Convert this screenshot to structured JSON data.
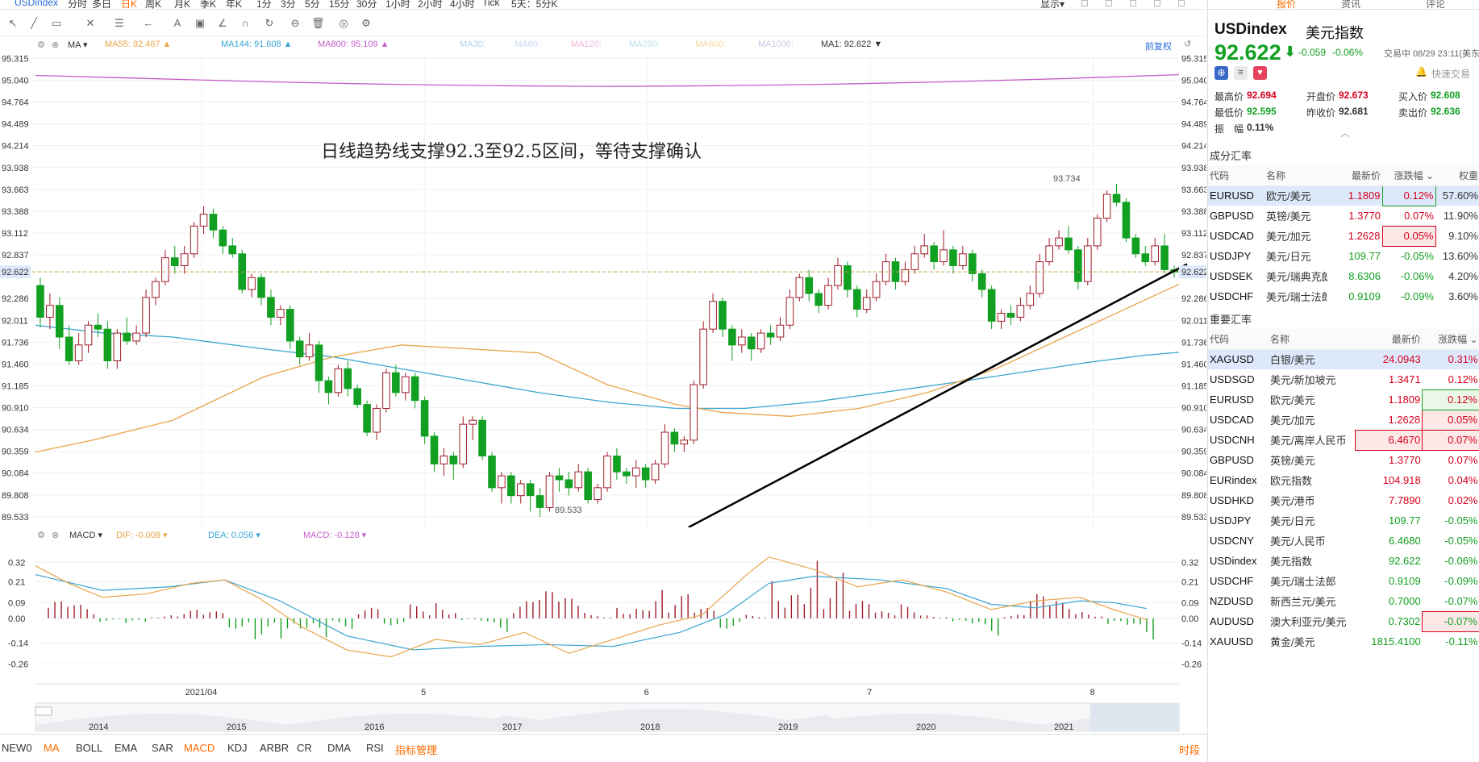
{
  "topbar": {
    "symbol": "USDindex",
    "periods": [
      "分时",
      "多日",
      "日K",
      "周K",
      "月K",
      "季K",
      "年K",
      "1分",
      "3分",
      "5分",
      "15分",
      "30分",
      "1小时",
      "2小时",
      "4小时",
      "Tick",
      "5天：5分K"
    ],
    "active_period": "日K",
    "display": "显示"
  },
  "legend": {
    "indicator": "MA",
    "items": [
      {
        "text": "MA55: 92.467",
        "color": "#e8a44a"
      },
      {
        "text": "MA144: 91.608",
        "color": "#3aa5d1"
      },
      {
        "text": "MA800: 95.109",
        "color": "#c45ec7"
      },
      {
        "text": "MA30:",
        "color": "#a9d2ee"
      },
      {
        "text": "MA60:",
        "color": "#c6d8f5"
      },
      {
        "text": "MA120:",
        "color": "#f2b8d8"
      },
      {
        "text": "MA250:",
        "color": "#b7e3ec"
      },
      {
        "text": "MA600:",
        "color": "#f4d79e"
      },
      {
        "text": "MA1000:",
        "color": "#c8c8e6"
      },
      {
        "text": "MA1: 92.622",
        "color": "#333333"
      }
    ],
    "adjust": "前复权"
  },
  "annotation": "日线趋势线支撑92.3至92.5区间，等待支撑确认",
  "chart_data": {
    "type": "candlestick",
    "yticks": [
      "95.315",
      "95.040",
      "94.764",
      "94.489",
      "94.214",
      "93.938",
      "93.663",
      "93.388",
      "93.112",
      "92.837",
      "92.622",
      "92.286",
      "92.011",
      "91.736",
      "91.460",
      "91.185",
      "90.910",
      "90.634",
      "90.359",
      "90.084",
      "89.808",
      "89.533"
    ],
    "ylim": [
      89.4,
      95.4
    ],
    "xticks": [
      "2021/04",
      "5",
      "6",
      "7",
      "8"
    ],
    "high_label": "93.734",
    "low_label": "89.533",
    "last_price": "92.622",
    "candles": [
      [
        92.45,
        92.05,
        92.55,
        91.92
      ],
      [
        92.05,
        92.2,
        92.35,
        91.9
      ],
      [
        92.2,
        91.8,
        92.3,
        91.65
      ],
      [
        91.8,
        91.5,
        91.95,
        91.45
      ],
      [
        91.5,
        91.7,
        91.85,
        91.45
      ],
      [
        91.7,
        91.95,
        92.0,
        91.6
      ],
      [
        91.95,
        91.9,
        92.1,
        91.8
      ],
      [
        91.9,
        91.5,
        92.0,
        91.4
      ],
      [
        91.5,
        91.85,
        91.9,
        91.4
      ],
      [
        91.85,
        91.75,
        92.05,
        91.7
      ],
      [
        91.75,
        91.85,
        91.95,
        91.7
      ],
      [
        91.85,
        92.3,
        92.4,
        91.8
      ],
      [
        92.3,
        92.5,
        92.55,
        92.2
      ],
      [
        92.5,
        92.8,
        92.9,
        92.45
      ],
      [
        92.8,
        92.7,
        92.95,
        92.6
      ],
      [
        92.7,
        92.85,
        92.95,
        92.6
      ],
      [
        92.85,
        93.2,
        93.25,
        92.8
      ],
      [
        93.2,
        93.35,
        93.45,
        93.1
      ],
      [
        93.35,
        93.15,
        93.42,
        93.05
      ],
      [
        93.15,
        92.95,
        93.2,
        92.85
      ],
      [
        92.95,
        92.85,
        93.05,
        92.8
      ],
      [
        92.85,
        92.4,
        92.9,
        92.35
      ],
      [
        92.4,
        92.55,
        92.6,
        92.3
      ],
      [
        92.55,
        92.3,
        92.6,
        92.2
      ],
      [
        92.3,
        92.05,
        92.4,
        91.95
      ],
      [
        92.05,
        92.15,
        92.2,
        91.95
      ],
      [
        92.15,
        91.75,
        92.2,
        91.65
      ],
      [
        91.75,
        91.55,
        91.8,
        91.45
      ],
      [
        91.55,
        91.7,
        91.85,
        91.5
      ],
      [
        91.7,
        91.25,
        91.75,
        91.1
      ],
      [
        91.25,
        91.1,
        91.3,
        90.95
      ],
      [
        91.1,
        91.4,
        91.45,
        91.05
      ],
      [
        91.4,
        91.15,
        91.5,
        91.05
      ],
      [
        91.15,
        90.95,
        91.2,
        90.9
      ],
      [
        90.95,
        90.6,
        91.0,
        90.55
      ],
      [
        90.6,
        90.9,
        90.95,
        90.5
      ],
      [
        90.9,
        91.35,
        91.4,
        90.85
      ],
      [
        91.35,
        91.1,
        91.45,
        91.05
      ],
      [
        91.1,
        91.3,
        91.35,
        91.0
      ],
      [
        91.3,
        91.0,
        91.35,
        90.9
      ],
      [
        91.0,
        90.55,
        91.05,
        90.45
      ],
      [
        90.55,
        90.2,
        90.6,
        90.1
      ],
      [
        90.2,
        90.3,
        90.4,
        90.05
      ],
      [
        90.3,
        90.2,
        90.35,
        90.0
      ],
      [
        90.2,
        90.7,
        90.8,
        90.15
      ],
      [
        90.7,
        90.75,
        90.8,
        90.5
      ],
      [
        90.75,
        90.3,
        90.8,
        90.25
      ],
      [
        90.3,
        89.9,
        90.35,
        89.85
      ],
      [
        89.9,
        90.05,
        90.1,
        89.7
      ],
      [
        90.05,
        89.8,
        90.1,
        89.7
      ],
      [
        89.8,
        89.95,
        90.0,
        89.7
      ],
      [
        89.95,
        89.8,
        90.0,
        89.6
      ],
      [
        89.8,
        89.65,
        89.9,
        89.53
      ],
      [
        89.65,
        90.05,
        90.1,
        89.6
      ],
      [
        90.05,
        90.0,
        90.15,
        89.85
      ],
      [
        90.0,
        89.9,
        90.1,
        89.8
      ],
      [
        89.9,
        90.1,
        90.2,
        89.85
      ],
      [
        90.1,
        89.75,
        90.15,
        89.7
      ],
      [
        89.75,
        89.9,
        89.95,
        89.7
      ],
      [
        89.9,
        90.3,
        90.35,
        89.85
      ],
      [
        90.3,
        90.1,
        90.4,
        90.0
      ],
      [
        90.1,
        90.05,
        90.15,
        89.95
      ],
      [
        90.05,
        90.15,
        90.25,
        89.9
      ],
      [
        90.15,
        90.0,
        90.2,
        89.9
      ],
      [
        90.0,
        90.2,
        90.25,
        89.95
      ],
      [
        90.2,
        90.6,
        90.7,
        90.15
      ],
      [
        90.6,
        90.45,
        90.65,
        90.35
      ],
      [
        90.45,
        90.5,
        90.55,
        90.35
      ],
      [
        90.5,
        91.2,
        91.25,
        90.45
      ],
      [
        91.2,
        91.9,
        92.0,
        91.15
      ],
      [
        91.9,
        92.25,
        92.35,
        91.85
      ],
      [
        92.25,
        91.9,
        92.3,
        91.8
      ],
      [
        91.9,
        91.7,
        91.95,
        91.5
      ],
      [
        91.7,
        91.8,
        91.9,
        91.6
      ],
      [
        91.8,
        91.65,
        91.85,
        91.5
      ],
      [
        91.65,
        91.85,
        91.9,
        91.6
      ],
      [
        91.85,
        91.8,
        91.95,
        91.7
      ],
      [
        91.8,
        91.95,
        92.05,
        91.75
      ],
      [
        91.95,
        92.3,
        92.4,
        91.9
      ],
      [
        92.3,
        92.55,
        92.6,
        92.25
      ],
      [
        92.55,
        92.35,
        92.65,
        92.25
      ],
      [
        92.35,
        92.2,
        92.4,
        92.1
      ],
      [
        92.2,
        92.45,
        92.55,
        92.15
      ],
      [
        92.45,
        92.7,
        92.8,
        92.4
      ],
      [
        92.7,
        92.4,
        92.75,
        92.3
      ],
      [
        92.4,
        92.15,
        92.45,
        92.05
      ],
      [
        92.15,
        92.3,
        92.4,
        92.1
      ],
      [
        92.3,
        92.5,
        92.6,
        92.25
      ],
      [
        92.5,
        92.75,
        92.85,
        92.45
      ],
      [
        92.75,
        92.5,
        92.8,
        92.4
      ],
      [
        92.5,
        92.65,
        92.75,
        92.45
      ],
      [
        92.65,
        92.85,
        92.95,
        92.6
      ],
      [
        92.85,
        92.95,
        93.1,
        92.8
      ],
      [
        92.95,
        92.75,
        93.0,
        92.65
      ],
      [
        92.75,
        92.9,
        93.15,
        92.7
      ],
      [
        92.9,
        92.7,
        92.95,
        92.6
      ],
      [
        92.7,
        92.85,
        92.95,
        92.65
      ],
      [
        92.85,
        92.6,
        92.9,
        92.5
      ],
      [
        92.6,
        92.4,
        92.65,
        92.3
      ],
      [
        92.4,
        92.0,
        92.45,
        91.9
      ],
      [
        92.0,
        92.1,
        92.15,
        91.9
      ],
      [
        92.1,
        92.05,
        92.2,
        91.95
      ],
      [
        92.05,
        92.2,
        92.3,
        92.0
      ],
      [
        92.2,
        92.35,
        92.45,
        92.15
      ],
      [
        92.35,
        92.75,
        92.85,
        92.3
      ],
      [
        92.75,
        92.95,
        93.05,
        92.7
      ],
      [
        92.95,
        93.05,
        93.15,
        92.9
      ],
      [
        93.05,
        92.9,
        93.2,
        92.85
      ],
      [
        92.9,
        92.5,
        92.95,
        92.4
      ],
      [
        92.5,
        92.95,
        93.05,
        92.45
      ],
      [
        92.95,
        93.3,
        93.35,
        92.9
      ],
      [
        93.3,
        93.6,
        93.65,
        93.25
      ],
      [
        93.6,
        93.5,
        93.734,
        93.45
      ],
      [
        93.5,
        93.05,
        93.55,
        93.0
      ],
      [
        93.05,
        92.85,
        93.1,
        92.8
      ],
      [
        92.85,
        92.75,
        92.95,
        92.7
      ],
      [
        92.75,
        92.95,
        93.05,
        92.7
      ],
      [
        92.95,
        92.65,
        93.1,
        92.6
      ],
      [
        92.65,
        92.62,
        92.7,
        92.55
      ]
    ],
    "ma55": [
      [
        0,
        90.35
      ],
      [
        0.05,
        90.5
      ],
      [
        0.12,
        90.75
      ],
      [
        0.2,
        91.3
      ],
      [
        0.26,
        91.55
      ],
      [
        0.32,
        91.7
      ],
      [
        0.38,
        91.65
      ],
      [
        0.44,
        91.6
      ],
      [
        0.5,
        91.2
      ],
      [
        0.56,
        90.95
      ],
      [
        0.6,
        90.85
      ],
      [
        0.66,
        90.8
      ],
      [
        0.72,
        90.9
      ],
      [
        0.78,
        91.1
      ],
      [
        0.84,
        91.4
      ],
      [
        0.9,
        91.8
      ],
      [
        0.96,
        92.2
      ],
      [
        1.0,
        92.467
      ]
    ],
    "ma144": [
      [
        0,
        91.95
      ],
      [
        0.06,
        91.85
      ],
      [
        0.12,
        91.8
      ],
      [
        0.2,
        91.65
      ],
      [
        0.26,
        91.55
      ],
      [
        0.32,
        91.4
      ],
      [
        0.38,
        91.25
      ],
      [
        0.44,
        91.1
      ],
      [
        0.5,
        90.98
      ],
      [
        0.56,
        90.9
      ],
      [
        0.62,
        90.9
      ],
      [
        0.68,
        90.98
      ],
      [
        0.74,
        91.1
      ],
      [
        0.8,
        91.22
      ],
      [
        0.86,
        91.35
      ],
      [
        0.92,
        91.48
      ],
      [
        0.97,
        91.57
      ],
      [
        1.0,
        91.608
      ]
    ],
    "ma800": [
      [
        0,
        95.1
      ],
      [
        0.1,
        95.06
      ],
      [
        0.2,
        95.02
      ],
      [
        0.3,
        94.99
      ],
      [
        0.4,
        94.97
      ],
      [
        0.5,
        94.96
      ],
      [
        0.6,
        94.97
      ],
      [
        0.7,
        94.99
      ],
      [
        0.8,
        95.02
      ],
      [
        0.9,
        95.06
      ],
      [
        1.0,
        95.109
      ]
    ],
    "trendline": [
      [
        0.43,
        89.4
      ],
      [
        1.0,
        92.72
      ]
    ],
    "macd_legend": [
      {
        "text": "DIF: -0.008",
        "color": "#e8a44a"
      },
      {
        "text": "DEA: 0.056",
        "color": "#3aa5d1"
      },
      {
        "text": "MACD: -0.128",
        "color": "#c45ec7"
      }
    ],
    "macd_yticks": [
      "0.32",
      "0.21",
      "0.09",
      "0.00",
      "-0.14",
      "-0.26"
    ],
    "macd_ylim": [
      -0.3,
      0.4
    ],
    "macd_dif": [
      [
        0,
        0.3
      ],
      [
        0.03,
        0.2
      ],
      [
        0.06,
        0.12
      ],
      [
        0.1,
        0.14
      ],
      [
        0.14,
        0.2
      ],
      [
        0.17,
        0.22
      ],
      [
        0.2,
        0.12
      ],
      [
        0.24,
        -0.05
      ],
      [
        0.28,
        -0.18
      ],
      [
        0.32,
        -0.22
      ],
      [
        0.36,
        -0.12
      ],
      [
        0.4,
        -0.15
      ],
      [
        0.44,
        -0.08
      ],
      [
        0.48,
        -0.2
      ],
      [
        0.52,
        -0.12
      ],
      [
        0.56,
        -0.04
      ],
      [
        0.6,
        0.02
      ],
      [
        0.64,
        0.25
      ],
      [
        0.66,
        0.35
      ],
      [
        0.7,
        0.28
      ],
      [
        0.74,
        0.18
      ],
      [
        0.78,
        0.22
      ],
      [
        0.82,
        0.15
      ],
      [
        0.86,
        0.05
      ],
      [
        0.9,
        0.1
      ],
      [
        0.94,
        0.12
      ],
      [
        0.97,
        0.05
      ],
      [
        1.0,
        -0.008
      ]
    ],
    "macd_dea": [
      [
        0,
        0.25
      ],
      [
        0.06,
        0.16
      ],
      [
        0.12,
        0.18
      ],
      [
        0.17,
        0.22
      ],
      [
        0.22,
        0.1
      ],
      [
        0.28,
        -0.1
      ],
      [
        0.34,
        -0.18
      ],
      [
        0.4,
        -0.16
      ],
      [
        0.46,
        -0.15
      ],
      [
        0.52,
        -0.16
      ],
      [
        0.58,
        -0.08
      ],
      [
        0.62,
        0.02
      ],
      [
        0.66,
        0.2
      ],
      [
        0.7,
        0.24
      ],
      [
        0.76,
        0.22
      ],
      [
        0.82,
        0.17
      ],
      [
        0.86,
        0.08
      ],
      [
        0.9,
        0.06
      ],
      [
        0.94,
        0.1
      ],
      [
        0.97,
        0.09
      ],
      [
        1.0,
        0.056
      ]
    ],
    "macd_hist": [
      0.1,
      0.08,
      -0.02,
      -0.04,
      0.02,
      0.05,
      0.04,
      -0.06,
      -0.12,
      -0.15,
      -0.14,
      -0.06,
      0.06,
      -0.04,
      0.08,
      0.1,
      -0.02,
      -0.08,
      0.1,
      0.16,
      0.12,
      0.02,
      0.1,
      0.18,
      0.14,
      0.06,
      -0.06,
      0.02,
      0.3,
      0.4,
      0.26,
      0.1,
      0.04,
      0.08,
      0.02,
      -0.04,
      -0.1,
      0.02,
      0.14,
      0.1,
      0.04,
      -0.06,
      -0.128
    ],
    "xaxis_years": [
      "2014",
      "2015",
      "2016",
      "2017",
      "2018",
      "2019",
      "2020",
      "2021"
    ]
  },
  "quote": {
    "symbol": "USDindex",
    "name": "美元指数",
    "price": "92.622",
    "change": "-0.059",
    "pct": "-0.06%",
    "status": "交易中 08/29 23:11(美东)",
    "fast_trade": "快速交易",
    "stats": [
      {
        "label": "最高价",
        "value": "92.694",
        "cls": "up"
      },
      {
        "label": "开盘价",
        "value": "92.673",
        "cls": "up"
      },
      {
        "label": "买入价",
        "value": "92.608",
        "cls": "dn"
      },
      {
        "label": "最低价",
        "value": "92.595",
        "cls": "dn"
      },
      {
        "label": "昨收价",
        "value": "92.681",
        "cls": ""
      },
      {
        "label": "卖出价",
        "value": "92.636",
        "cls": "dn"
      },
      {
        "label": "振　幅",
        "value": "0.11%",
        "cls": ""
      }
    ]
  },
  "tabs": [
    "报价",
    "资讯",
    "评论"
  ],
  "components": {
    "title": "成分汇率",
    "headers": [
      "代码",
      "名称",
      "最新价",
      "涨跌幅",
      "权重"
    ],
    "rows": [
      [
        "EURUSD",
        "欧元/美元",
        "1.1809",
        "0.12%",
        "57.60%",
        "up"
      ],
      [
        "GBPUSD",
        "英镑/美元",
        "1.3770",
        "0.07%",
        "11.90%",
        "up"
      ],
      [
        "USDCAD",
        "美元/加元",
        "1.2628",
        "0.05%",
        "9.10%",
        "up"
      ],
      [
        "USDJPY",
        "美元/日元",
        "109.77",
        "-0.05%",
        "13.60%",
        "dn"
      ],
      [
        "USDSEK",
        "美元/瑞典克朗",
        "8.6306",
        "-0.06%",
        "4.20%",
        "dn"
      ],
      [
        "USDCHF",
        "美元/瑞士法郎",
        "0.9109",
        "-0.09%",
        "3.60%",
        "dn"
      ]
    ]
  },
  "major": {
    "title": "重要汇率",
    "headers": [
      "代码",
      "名称",
      "最新价",
      "涨跌幅"
    ],
    "rows": [
      [
        "XAGUSD",
        "白银/美元",
        "24.0943",
        "0.31%",
        "up"
      ],
      [
        "USDSGD",
        "美元/新加坡元",
        "1.3471",
        "0.12%",
        "up"
      ],
      [
        "EURUSD",
        "欧元/美元",
        "1.1809",
        "0.12%",
        "up"
      ],
      [
        "USDCAD",
        "美元/加元",
        "1.2628",
        "0.05%",
        "up"
      ],
      [
        "USDCNH",
        "美元/离岸人民币",
        "6.4670",
        "0.07%",
        "up"
      ],
      [
        "GBPUSD",
        "英镑/美元",
        "1.3770",
        "0.07%",
        "up"
      ],
      [
        "EURindex",
        "欧元指数",
        "104.918",
        "0.04%",
        "up"
      ],
      [
        "USDHKD",
        "美元/港币",
        "7.7890",
        "0.02%",
        "up"
      ],
      [
        "USDJPY",
        "美元/日元",
        "109.77",
        "-0.05%",
        "dn"
      ],
      [
        "USDCNY",
        "美元/人民币",
        "6.4680",
        "-0.05%",
        "dn"
      ],
      [
        "USDindex",
        "美元指数",
        "92.622",
        "-0.06%",
        "dn"
      ],
      [
        "USDCHF",
        "美元/瑞士法郎",
        "0.9109",
        "-0.09%",
        "dn"
      ],
      [
        "NZDUSD",
        "新西兰元/美元",
        "0.7000",
        "-0.07%",
        "dn"
      ],
      [
        "AUDUSD",
        "澳大利亚元/美元",
        "0.7302",
        "-0.07%",
        "dn"
      ],
      [
        "XAUUSD",
        "黄金/美元",
        "1815.4100",
        "-0.11%",
        "dn"
      ]
    ]
  },
  "bottom": {
    "items": [
      "NEW0",
      "MA",
      "BOLL",
      "EMA",
      "SAR",
      "MACD",
      "KDJ",
      "ARBR",
      "CR",
      "DMA",
      "RSI",
      "指标管理"
    ],
    "right": "时段"
  },
  "macd_label": "MACD"
}
